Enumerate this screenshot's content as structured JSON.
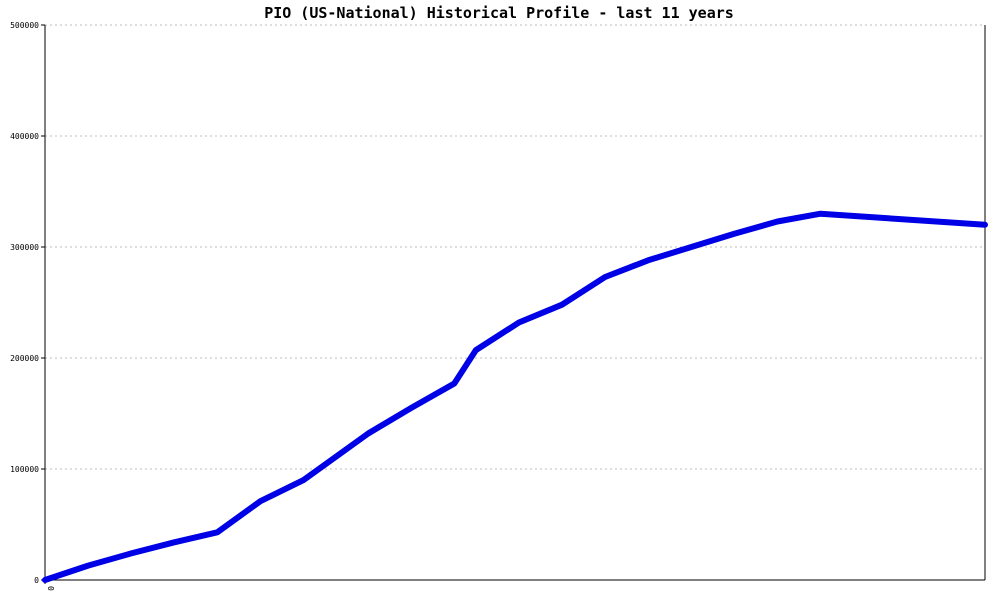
{
  "chart_data": {
    "type": "line",
    "title": "PIO (US-National) Historical Profile - last 11 years",
    "xlabel": "",
    "ylabel": "",
    "ylim": [
      0,
      500000
    ],
    "yticks": [
      0,
      100000,
      200000,
      300000,
      400000,
      500000
    ],
    "ytick_labels": [
      "0",
      "100000",
      "200000",
      "300000",
      "400000",
      "500000"
    ],
    "xtick_labels": [
      "0"
    ],
    "grid": true,
    "legend": "none",
    "color": "#0000e6",
    "series": [
      {
        "x": [
          0,
          0.0458,
          0.0917,
          0.1375,
          0.1833,
          0.2292,
          0.275,
          0.3438,
          0.3896,
          0.4354,
          0.4583,
          0.5042,
          0.55,
          0.5958,
          0.6417,
          0.6875,
          0.7333,
          0.7792,
          0.825,
          1.0
        ],
        "values": [
          0,
          13000,
          24000,
          34000,
          43000,
          71000,
          90000,
          132000,
          155000,
          177000,
          207000,
          232000,
          248000,
          273000,
          288000,
          300000,
          312000,
          323000,
          330000,
          320000
        ]
      }
    ]
  }
}
